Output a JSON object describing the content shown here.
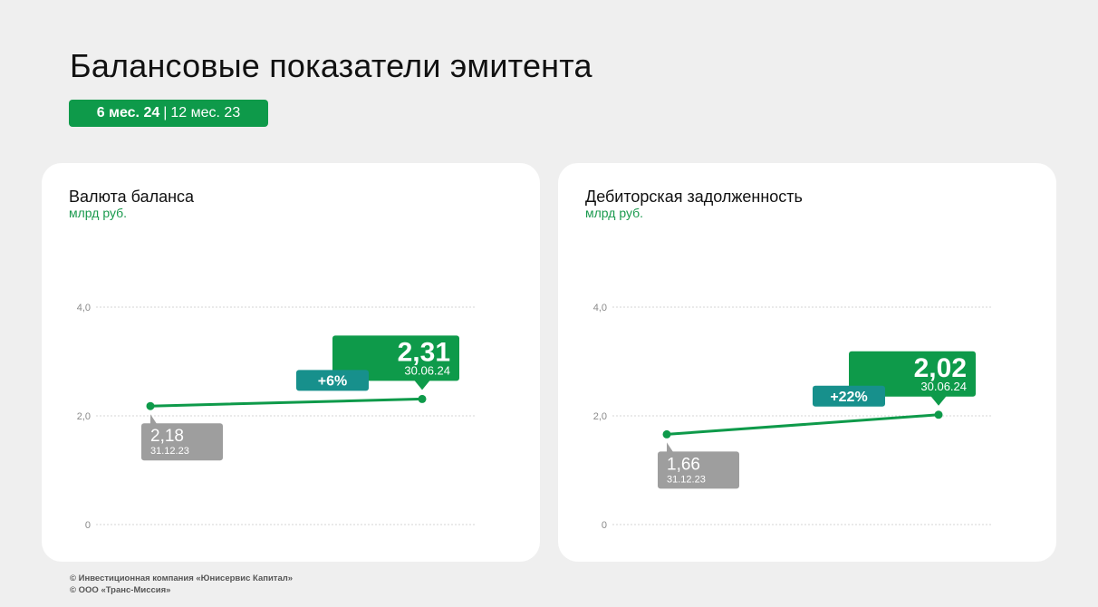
{
  "title": "Балансовые показатели эмитента",
  "period": {
    "current": "6 мес. 24",
    "separator": "|",
    "previous": "12 мес. 23"
  },
  "colors": {
    "green": "#0e9a4a",
    "teal": "#17908c",
    "gray": "#9e9e9e",
    "grid": "#d4d4d4",
    "axis_text": "#8a8a8a"
  },
  "chart_data": [
    {
      "type": "line",
      "title": "Валюта баланса",
      "unit": "млрд руб.",
      "ylim": [
        0,
        4.0
      ],
      "y_ticks": [
        "0",
        "2,0",
        "4,0"
      ],
      "grid": true,
      "x": [
        "31.12.23",
        "30.06.24"
      ],
      "values": [
        2.18,
        2.31
      ],
      "labels": [
        "2,18",
        "2,31"
      ],
      "change": "+6%"
    },
    {
      "type": "line",
      "title": "Дебиторская задолженность",
      "unit": "млрд руб.",
      "ylim": [
        0,
        4.0
      ],
      "y_ticks": [
        "0",
        "2,0",
        "4,0"
      ],
      "grid": true,
      "x": [
        "31.12.23",
        "30.06.24"
      ],
      "values": [
        1.66,
        2.02
      ],
      "labels": [
        "1,66",
        "2,02"
      ],
      "change": "+22%"
    }
  ],
  "footer": [
    "© Инвестиционная компания «Юнисервис Капитал»",
    "© ООО «Транс-Миссия»"
  ]
}
